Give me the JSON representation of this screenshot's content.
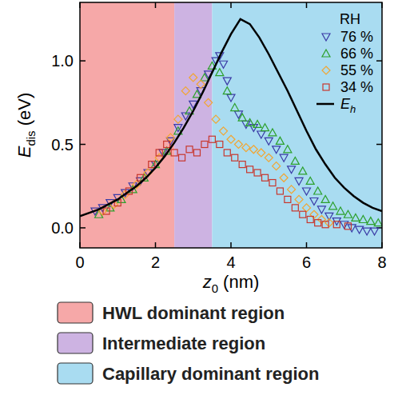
{
  "chart_data": {
    "type": "scatter",
    "x_label": [
      "z",
      "0",
      " (nm)"
    ],
    "y_label": [
      "E",
      "dis",
      " (eV)"
    ],
    "legend_title": "RH",
    "legend": "upper right",
    "xlim": [
      0,
      8
    ],
    "xticks": [
      0,
      2,
      4,
      6,
      8
    ],
    "ylim": [
      -0.12,
      1.35
    ],
    "yticks": [
      {
        "value": 0,
        "label": "0.0"
      },
      {
        "value": 0.5,
        "label": "0.5"
      },
      {
        "value": 1,
        "label": "1.0"
      }
    ],
    "regions": [
      {
        "name": "HWL dominant region",
        "x": [
          0,
          2.5
        ],
        "color": "#f6a8a8"
      },
      {
        "name": "Intermediate region",
        "x": [
          2.5,
          3.5
        ],
        "color": "#cdb3e2"
      },
      {
        "name": "Capillary dominant region",
        "x": [
          3.5,
          8
        ],
        "color": "#a9dcf1"
      }
    ],
    "series": [
      {
        "name": "76 %",
        "type": "scatter",
        "marker": "triangle-down",
        "color": "#3b3ba6",
        "x": [
          0.4,
          0.6,
          0.8,
          1.0,
          1.2,
          1.4,
          1.6,
          1.8,
          2.0,
          2.2,
          2.4,
          2.6,
          2.8,
          3.0,
          3.2,
          3.4,
          3.6,
          3.7,
          3.8,
          3.9,
          4.0,
          4.2,
          4.4,
          4.6,
          4.8,
          5.0,
          5.2,
          5.4,
          5.6,
          5.8,
          6.0,
          6.2,
          6.4,
          6.6,
          6.8,
          7.0,
          7.2,
          7.4,
          7.6,
          7.8
        ],
        "values": [
          0.1,
          0.12,
          0.15,
          0.18,
          0.21,
          0.25,
          0.28,
          0.33,
          0.38,
          0.45,
          0.52,
          0.6,
          0.67,
          0.74,
          0.82,
          0.92,
          1.0,
          1.03,
          0.98,
          0.88,
          0.78,
          0.68,
          0.62,
          0.6,
          0.56,
          0.52,
          0.47,
          0.42,
          0.35,
          0.28,
          0.22,
          0.16,
          0.11,
          0.07,
          0.04,
          0.02,
          0.0,
          -0.01,
          -0.02,
          -0.02
        ]
      },
      {
        "name": "66 %",
        "type": "scatter",
        "marker": "triangle-up",
        "color": "#2ca02c",
        "x": [
          0.5,
          0.8,
          1.1,
          1.4,
          1.7,
          2.0,
          2.3,
          2.6,
          2.9,
          3.1,
          3.3,
          3.5,
          3.7,
          3.9,
          4.1,
          4.3,
          4.5,
          4.7,
          4.9,
          5.1,
          5.3,
          5.5,
          5.7,
          5.9,
          6.1,
          6.3,
          6.5,
          6.7,
          6.9,
          7.1,
          7.3,
          7.5,
          7.7,
          7.9
        ],
        "values": [
          0.08,
          0.12,
          0.17,
          0.23,
          0.3,
          0.38,
          0.46,
          0.58,
          0.7,
          0.8,
          0.9,
          0.97,
          0.93,
          0.82,
          0.72,
          0.66,
          0.63,
          0.62,
          0.6,
          0.57,
          0.52,
          0.47,
          0.4,
          0.34,
          0.28,
          0.22,
          0.17,
          0.13,
          0.1,
          0.08,
          0.06,
          0.05,
          0.04,
          0.03
        ]
      },
      {
        "name": "55 %",
        "type": "scatter",
        "marker": "diamond",
        "color": "#f2a531",
        "x": [
          0.6,
          0.9,
          1.2,
          1.5,
          1.8,
          2.1,
          2.4,
          2.6,
          2.8,
          3.0,
          3.2,
          3.4,
          3.6,
          3.8,
          4.0,
          4.2,
          4.4,
          4.6,
          4.8,
          5.0,
          5.2,
          5.4,
          5.6,
          5.8,
          6.0,
          6.2,
          6.4,
          6.6
        ],
        "values": [
          0.1,
          0.14,
          0.2,
          0.26,
          0.33,
          0.42,
          0.54,
          0.65,
          0.82,
          0.9,
          0.86,
          0.75,
          0.65,
          0.58,
          0.53,
          0.5,
          0.48,
          0.47,
          0.45,
          0.42,
          0.37,
          0.3,
          0.23,
          0.17,
          0.12,
          0.08,
          0.05,
          0.03
        ]
      },
      {
        "name": "34 %",
        "type": "scatter",
        "marker": "square",
        "color": "#c8372d",
        "x": [
          0.7,
          1.0,
          1.3,
          1.6,
          1.9,
          2.1,
          2.3,
          2.5,
          2.7,
          2.9,
          3.1,
          3.3,
          3.5,
          3.7,
          3.9,
          4.1,
          4.3,
          4.5,
          4.7,
          4.9,
          5.1,
          5.3,
          5.5,
          5.7,
          5.9,
          6.1,
          6.3,
          6.5,
          6.8,
          7.1
        ],
        "values": [
          0.1,
          0.15,
          0.22,
          0.3,
          0.38,
          0.45,
          0.5,
          0.45,
          0.42,
          0.47,
          0.45,
          0.5,
          0.53,
          0.5,
          0.45,
          0.42,
          0.38,
          0.35,
          0.33,
          0.3,
          0.27,
          0.22,
          0.17,
          0.12,
          0.08,
          0.05,
          0.03,
          0.02,
          0.02,
          0.01
        ]
      },
      {
        "name": "Eh",
        "type": "line",
        "line_style": "solid",
        "color": "#000000",
        "x": [
          0,
          0.25,
          0.5,
          0.75,
          1,
          1.25,
          1.5,
          1.75,
          2,
          2.25,
          2.5,
          2.75,
          3,
          3.25,
          3.5,
          3.75,
          4,
          4.25,
          4.5,
          4.75,
          5,
          5.25,
          5.5,
          5.75,
          6,
          6.25,
          6.5,
          6.75,
          7,
          7.25,
          7.5,
          7.75,
          8
        ],
        "values": [
          0.07,
          0.09,
          0.11,
          0.14,
          0.17,
          0.21,
          0.25,
          0.3,
          0.36,
          0.43,
          0.51,
          0.6,
          0.7,
          0.81,
          0.93,
          1.05,
          1.16,
          1.25,
          1.22,
          1.14,
          1.04,
          0.93,
          0.82,
          0.7,
          0.58,
          0.47,
          0.38,
          0.3,
          0.24,
          0.19,
          0.15,
          0.12,
          0.1
        ]
      }
    ]
  }
}
